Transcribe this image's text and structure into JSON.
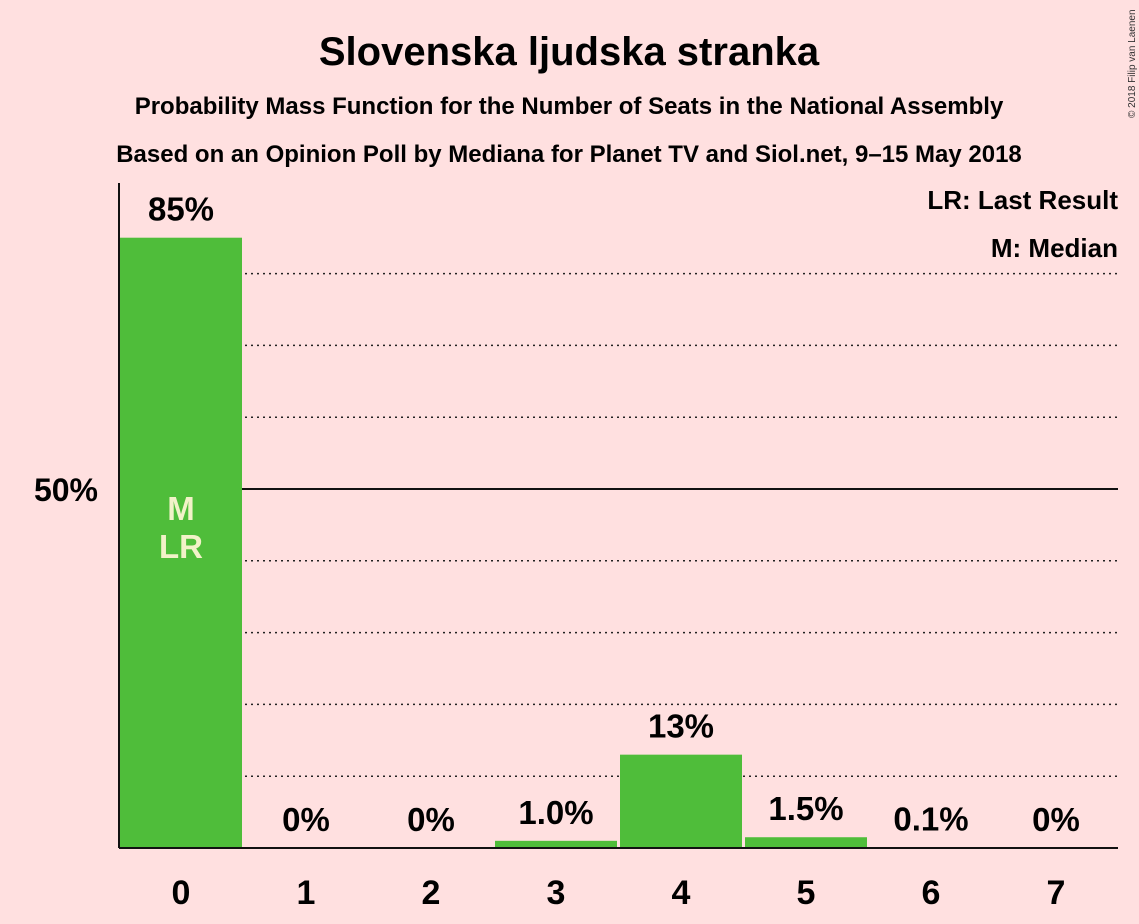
{
  "chart_data": {
    "type": "bar",
    "title": "Slovenska ljudska stranka",
    "subtitle_1": "Probability Mass Function for the Number of Seats in the National Assembly",
    "subtitle_2": "Based on an Opinion Poll by Mediana for Planet TV and Siol.net, 9–15 May 2018",
    "categories": [
      "0",
      "1",
      "2",
      "3",
      "4",
      "5",
      "6",
      "7"
    ],
    "values": [
      85,
      0,
      0,
      1.0,
      13,
      1.5,
      0.1,
      0
    ],
    "value_labels": [
      "85%",
      "0%",
      "0%",
      "1.0%",
      "13%",
      "1.5%",
      "0.1%",
      "0%"
    ],
    "ylim": [
      0,
      100
    ],
    "y_ticks": [
      {
        "value": 50,
        "label": "50%"
      }
    ],
    "gridlines": [
      10,
      20,
      30,
      40,
      60,
      70,
      80
    ],
    "solid_gridline": 50,
    "bar_color": "#4FBD3A",
    "median_index": 0,
    "last_result_index": 0,
    "in_bar_markers": [
      "M",
      "LR"
    ],
    "legend": [
      "LR: Last Result",
      "M: Median"
    ],
    "legend_position": "top-right",
    "copyright": "© 2018 Filip van Laenen"
  }
}
